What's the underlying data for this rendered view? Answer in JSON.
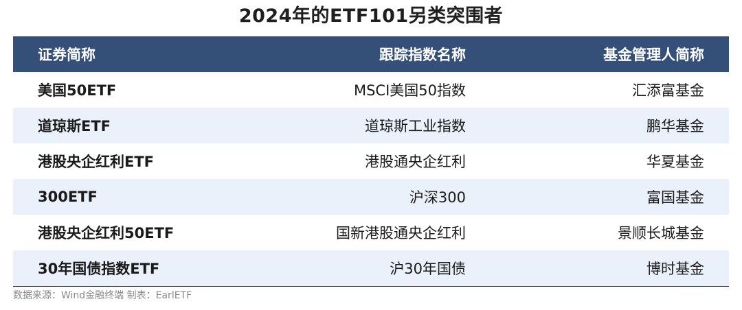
{
  "title": "2024年的ETF101另类突围者",
  "table": {
    "headers": [
      "证券简称",
      "跟踪指数名称",
      "基金管理人简称"
    ],
    "rows": [
      [
        "美国50ETF",
        "MSCI美国50指数",
        "汇添富基金"
      ],
      [
        "道琼斯ETF",
        "道琼斯工业指数",
        "鹏华基金"
      ],
      [
        "港股央企红利ETF",
        "港股通央企红利",
        "华夏基金"
      ],
      [
        "300ETF",
        "沪深300",
        "富国基金"
      ],
      [
        "港股央企红利50ETF",
        "国新港股通央企红利",
        "景顺长城基金"
      ],
      [
        "30年国债指数ETF",
        "沪30年国债",
        "博时基金"
      ]
    ]
  },
  "footer": "数据来源：Wind金融终端 制表：EarlETF",
  "colors": {
    "header_bg": "#344f78",
    "alt_row_bg": "#eaf1fa"
  }
}
